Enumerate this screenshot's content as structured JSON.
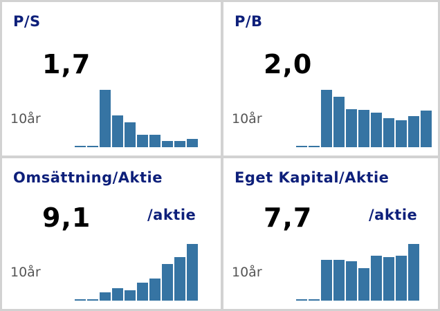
{
  "cards": [
    {
      "title": "P/S",
      "value": "1,7",
      "unit": "",
      "period": "10år",
      "history": [
        0.02,
        0.02,
        0.98,
        0.54,
        0.42,
        0.21,
        0.21,
        0.11,
        0.11,
        0.14
      ]
    },
    {
      "title": "P/B",
      "value": "2,0",
      "unit": "",
      "period": "10år",
      "history": [
        0.02,
        0.02,
        0.98,
        0.86,
        0.65,
        0.63,
        0.59,
        0.49,
        0.46,
        0.53,
        0.62
      ]
    },
    {
      "title": "Omsättning/Aktie",
      "value": "9,1",
      "unit": "/aktie",
      "period": "10år",
      "history": [
        0.02,
        0.02,
        0.14,
        0.21,
        0.18,
        0.3,
        0.38,
        0.62,
        0.74,
        0.96
      ]
    },
    {
      "title": "Eget Kapital/Aktie",
      "value": "7,7",
      "unit": "/aktie",
      "period": "10år",
      "history": [
        0.02,
        0.02,
        0.7,
        0.7,
        0.67,
        0.55,
        0.76,
        0.74,
        0.76,
        0.96
      ]
    }
  ],
  "colors": {
    "bar": "#3674a3",
    "title": "#0d1f7a",
    "value": "#000000"
  }
}
